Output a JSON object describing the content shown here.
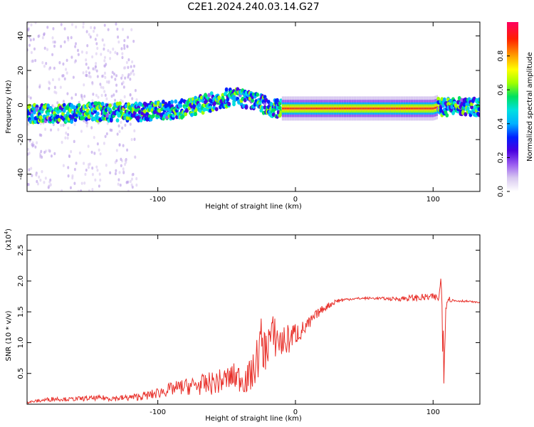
{
  "title": "C2E1.2024.240.03.14.G27",
  "colors": {
    "series_line": "#e8302a",
    "spectrum_track": "#ffd200",
    "spectrum_core": "#e8302a"
  },
  "chart_data": [
    {
      "type": "heatmap",
      "xlabel": "Height of straight line (km)",
      "ylabel": "Frequency (Hz)",
      "xlim": [
        -195,
        134
      ],
      "ylim": [
        -50,
        48
      ],
      "x_ticks": [
        -100,
        0,
        100
      ],
      "x_tick_labels": [
        "-100",
        "0",
        "100"
      ],
      "y_ticks": [
        40,
        20,
        0,
        -20,
        -40
      ],
      "y_tick_labels": [
        "40",
        "20",
        "0",
        "-20",
        "-40"
      ],
      "grid": false,
      "colorbar": {
        "label": "Normalized spectral amplitude",
        "range": [
          0,
          1
        ],
        "ticks": [
          0.0,
          0.2,
          0.4,
          0.6,
          0.8
        ],
        "tick_labels": [
          "0.0",
          "0.2",
          "0.4",
          "0.6",
          "0.8"
        ],
        "colormap": [
          "#ffffff",
          "#d8c8f0",
          "#9a5cf0",
          "#4a00e0",
          "#0020ff",
          "#00b0ff",
          "#00e0e0",
          "#00e060",
          "#a0ff00",
          "#ffff00",
          "#ffa000",
          "#ff2000",
          "#ff0060"
        ]
      },
      "ridge": {
        "x": [
          -195,
          -170,
          -150,
          -130,
          -110,
          -100,
          -90,
          -80,
          -70,
          -60,
          -50,
          -45,
          -40,
          -35,
          -30,
          -25,
          -20,
          -15,
          -10,
          0,
          20,
          60,
          100,
          104,
          110,
          134
        ],
        "y": [
          -5,
          -5,
          -4,
          -4,
          -4,
          -3,
          -3,
          -2,
          0,
          2,
          4,
          5,
          4,
          3,
          2,
          1,
          -1,
          -2,
          -2,
          -2,
          -2,
          -2,
          -2,
          -1,
          -1,
          -1
        ]
      }
    },
    {
      "type": "line",
      "xlabel": "Height of straight line (km)",
      "ylabel": "SNR (10 * v/v)",
      "y_scale_label": "(x10",
      "y_scale_exp": "4",
      "xlim": [
        -195,
        134
      ],
      "ylim": [
        0,
        2.75
      ],
      "x_ticks": [
        -100,
        0,
        100
      ],
      "x_tick_labels": [
        "-100",
        "0",
        "100"
      ],
      "y_ticks": [
        0.5,
        1.0,
        1.5,
        2.0,
        2.5
      ],
      "y_tick_labels": [
        "0.5",
        "1.0",
        "1.5",
        "2.0",
        "2.5"
      ],
      "grid": false,
      "series": [
        {
          "x": [
            -195,
            -185,
            -175,
            -165,
            -155,
            -145,
            -135,
            -125,
            -115,
            -105,
            -95,
            -85,
            -75,
            -65,
            -55,
            -45,
            -35,
            -30,
            -25,
            -22,
            -20,
            -15,
            -10,
            -5,
            0,
            5,
            10,
            15,
            20,
            30,
            40,
            50,
            60,
            70,
            80,
            90,
            100,
            104,
            106,
            108,
            110,
            115,
            120,
            130,
            134
          ],
          "y": [
            0.03,
            0.06,
            0.09,
            0.08,
            0.09,
            0.1,
            0.1,
            0.1,
            0.12,
            0.15,
            0.22,
            0.27,
            0.3,
            0.32,
            0.37,
            0.45,
            0.4,
            0.55,
            1.0,
            0.85,
            1.05,
            1.1,
            1.0,
            1.05,
            1.15,
            1.2,
            1.3,
            1.45,
            1.55,
            1.68,
            1.71,
            1.72,
            1.72,
            1.71,
            1.72,
            1.73,
            1.74,
            1.72,
            1.9,
            1.1,
            1.72,
            1.68,
            1.68,
            1.66,
            1.65
          ],
          "noise": [
            0.02,
            0.03,
            0.04,
            0.03,
            0.04,
            0.04,
            0.05,
            0.05,
            0.06,
            0.08,
            0.1,
            0.12,
            0.15,
            0.18,
            0.2,
            0.22,
            0.25,
            0.3,
            0.45,
            0.35,
            0.4,
            0.35,
            0.3,
            0.25,
            0.2,
            0.15,
            0.12,
            0.08,
            0.06,
            0.04,
            0.02,
            0.02,
            0.02,
            0.03,
            0.05,
            0.06,
            0.06,
            0.06,
            0.5,
            0.9,
            0.06,
            0.03,
            0.02,
            0.01,
            0.01
          ]
        }
      ]
    }
  ]
}
